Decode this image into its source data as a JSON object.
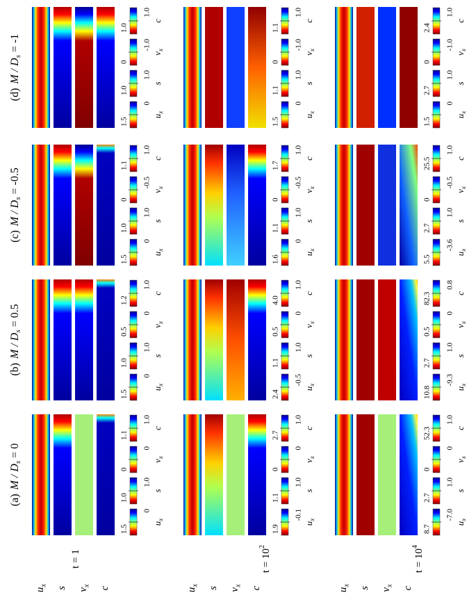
{
  "fields": [
    {
      "symbol": "u",
      "sub": "x"
    },
    {
      "symbol": "s"
    },
    {
      "symbol": "v",
      "sub": "x"
    },
    {
      "symbol": "c"
    }
  ],
  "times": [
    {
      "text": "t = 1"
    },
    {
      "text": "t = 10",
      "sup": "2"
    },
    {
      "text": "t = 10",
      "sup": "4"
    }
  ],
  "panels": [
    {
      "label": "(a)",
      "symbol": "M / D",
      "sub": "s",
      "rest": "= 0",
      "rows": [
        {
          "colorbars": [
            [
              "1.5",
              "0"
            ],
            [
              "1.0",
              "1.0"
            ],
            [
              "0",
              "0"
            ],
            [
              "1.1",
              "1.0"
            ]
          ]
        },
        {
          "colorbars": [
            [
              "1.9",
              "-0.1"
            ],
            [
              "1.1",
              "1.0"
            ],
            [
              "0",
              "0"
            ],
            [
              "2.7",
              "1.0"
            ]
          ]
        },
        {
          "colorbars": [
            [
              "8.7",
              "-7.0"
            ],
            [
              "2.7",
              "1.0"
            ],
            [
              "0",
              "0"
            ],
            [
              "52.3",
              "1.0"
            ]
          ]
        }
      ]
    },
    {
      "label": "(b)",
      "symbol": "M / D",
      "sub": "s",
      "rest": "= 0.5",
      "rows": [
        {
          "colorbars": [
            [
              "1.5",
              "0"
            ],
            [
              "1.0",
              "1.0"
            ],
            [
              "0.5",
              "0"
            ],
            [
              "1.2",
              "1.0"
            ]
          ]
        },
        {
          "colorbars": [
            [
              "2.4",
              "-0.5"
            ],
            [
              "1.1",
              "1.0"
            ],
            [
              "0.5",
              "0"
            ],
            [
              "4.0",
              "1.0"
            ]
          ]
        },
        {
          "colorbars": [
            [
              "10.8",
              "-9.3"
            ],
            [
              "2.7",
              "1.0"
            ],
            [
              "0.5",
              "0"
            ],
            [
              "82.3",
              "0.8"
            ]
          ]
        }
      ]
    },
    {
      "label": "(c)",
      "symbol": "M / D",
      "sub": "s",
      "rest": "= -0.5",
      "rows": [
        {
          "colorbars": [
            [
              "1.5",
              "0"
            ],
            [
              "1.0",
              "1.0"
            ],
            [
              "0",
              "-0.5"
            ],
            [
              "1.1",
              "1.0"
            ]
          ]
        },
        {
          "colorbars": [
            [
              "1.6",
              "0"
            ],
            [
              "1.1",
              "1.0"
            ],
            [
              "0",
              "-0.5"
            ],
            [
              "1.7",
              "1.0"
            ]
          ]
        },
        {
          "colorbars": [
            [
              "5.5",
              "-3.6"
            ],
            [
              "2.7",
              "1.0"
            ],
            [
              "0",
              "-0.5"
            ],
            [
              "25.5",
              "1.0"
            ]
          ]
        }
      ]
    },
    {
      "label": "(d)",
      "symbol": "M / D",
      "sub": "s",
      "rest": "= -1",
      "rows": [
        {
          "colorbars": [
            [
              "1.5",
              "0"
            ],
            [
              "1.0",
              "1.0"
            ],
            [
              "0",
              "-1.0"
            ],
            [
              "1.0",
              "1.0"
            ]
          ]
        },
        {
          "colorbars": [
            [
              "1.5",
              "0"
            ],
            [
              "1.1",
              "1.0"
            ],
            [
              "0",
              "-1.0"
            ],
            [
              "1.1",
              "1.0"
            ]
          ]
        },
        {
          "colorbars": [
            [
              "1.5",
              "0"
            ],
            [
              "2.7",
              "1.0"
            ],
            [
              "0",
              "-1.0"
            ],
            [
              "2.4",
              "1.0"
            ]
          ]
        }
      ]
    }
  ]
}
